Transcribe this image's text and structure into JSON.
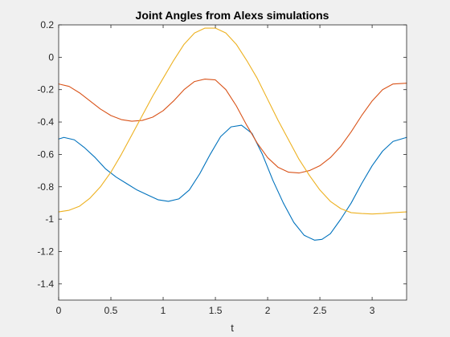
{
  "chart_data": {
    "type": "line",
    "title": "Joint Angles from Alexs simulations",
    "xlabel": "t",
    "ylabel": "",
    "xlim": [
      0,
      3.33
    ],
    "ylim": [
      -1.5,
      0.2
    ],
    "xticks": [
      0,
      0.5,
      1,
      1.5,
      2,
      2.5,
      3
    ],
    "yticks": [
      0.2,
      0,
      -0.2,
      -0.4,
      -0.6,
      -0.8,
      -1,
      -1.2,
      -1.4
    ],
    "grid": false,
    "series": [
      {
        "color": "#0072BD",
        "x": [
          0,
          0.05,
          0.15,
          0.25,
          0.35,
          0.45,
          0.55,
          0.65,
          0.75,
          0.85,
          0.95,
          1.05,
          1.15,
          1.25,
          1.35,
          1.45,
          1.55,
          1.65,
          1.75,
          1.85,
          1.95,
          2.05,
          2.15,
          2.25,
          2.35,
          2.45,
          2.52,
          2.6,
          2.7,
          2.8,
          2.9,
          3.0,
          3.1,
          3.2,
          3.33
        ],
        "y": [
          -0.505,
          -0.495,
          -0.51,
          -0.56,
          -0.62,
          -0.69,
          -0.74,
          -0.78,
          -0.82,
          -0.85,
          -0.88,
          -0.89,
          -0.875,
          -0.82,
          -0.72,
          -0.6,
          -0.49,
          -0.43,
          -0.42,
          -0.47,
          -0.6,
          -0.76,
          -0.9,
          -1.02,
          -1.1,
          -1.13,
          -1.125,
          -1.09,
          -1.0,
          -0.9,
          -0.78,
          -0.67,
          -0.58,
          -0.52,
          -0.495
        ]
      },
      {
        "color": "#D95319",
        "x": [
          0,
          0.1,
          0.2,
          0.3,
          0.4,
          0.5,
          0.6,
          0.7,
          0.8,
          0.9,
          1.0,
          1.1,
          1.2,
          1.3,
          1.4,
          1.5,
          1.6,
          1.7,
          1.8,
          1.9,
          2.0,
          2.1,
          2.2,
          2.3,
          2.4,
          2.5,
          2.6,
          2.7,
          2.8,
          2.9,
          3.0,
          3.1,
          3.2,
          3.33
        ],
        "y": [
          -0.165,
          -0.18,
          -0.22,
          -0.27,
          -0.32,
          -0.36,
          -0.385,
          -0.395,
          -0.39,
          -0.37,
          -0.33,
          -0.27,
          -0.2,
          -0.15,
          -0.135,
          -0.14,
          -0.2,
          -0.3,
          -0.42,
          -0.53,
          -0.62,
          -0.68,
          -0.71,
          -0.715,
          -0.7,
          -0.67,
          -0.62,
          -0.55,
          -0.46,
          -0.36,
          -0.27,
          -0.2,
          -0.165,
          -0.16
        ]
      },
      {
        "color": "#EDB120",
        "x": [
          0,
          0.1,
          0.2,
          0.3,
          0.4,
          0.5,
          0.6,
          0.7,
          0.8,
          0.9,
          1.0,
          1.1,
          1.2,
          1.3,
          1.4,
          1.5,
          1.6,
          1.7,
          1.8,
          1.9,
          2.0,
          2.1,
          2.2,
          2.3,
          2.4,
          2.5,
          2.6,
          2.7,
          2.8,
          2.9,
          3.0,
          3.1,
          3.2,
          3.33
        ],
        "y": [
          -0.955,
          -0.945,
          -0.92,
          -0.87,
          -0.8,
          -0.71,
          -0.6,
          -0.48,
          -0.36,
          -0.24,
          -0.13,
          -0.02,
          0.08,
          0.15,
          0.18,
          0.18,
          0.15,
          0.08,
          -0.02,
          -0.13,
          -0.26,
          -0.39,
          -0.51,
          -0.63,
          -0.73,
          -0.82,
          -0.89,
          -0.935,
          -0.96,
          -0.965,
          -0.968,
          -0.965,
          -0.96,
          -0.955
        ]
      }
    ]
  }
}
